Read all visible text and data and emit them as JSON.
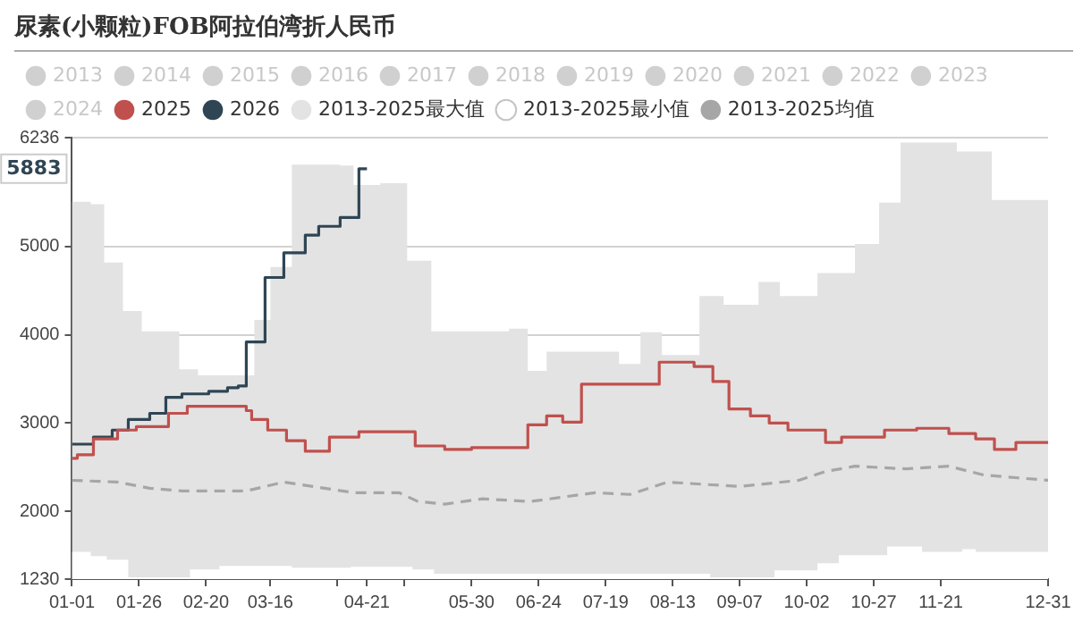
{
  "chart_data": {
    "type": "line",
    "title": "尿素(小颗粒)FOB阿拉伯湾折人民币",
    "xlim": [
      "--01-01",
      "--12-31"
    ],
    "ylim": [
      1230,
      6236
    ],
    "xticks": [
      {
        "value": "--01-01",
        "label": "01-01"
      },
      {
        "value": "--01-26",
        "label": "01-26"
      },
      {
        "value": "--02-20",
        "label": "02-20"
      },
      {
        "value": "--03-16",
        "label": "03-16"
      },
      {
        "value": "--04-10",
        "label": null
      },
      {
        "value": "--04-21",
        "label": "04-21"
      },
      {
        "value": "--05-05",
        "label": null
      },
      {
        "value": "--05-30",
        "label": "05-30"
      },
      {
        "value": "--06-24",
        "label": "06-24"
      },
      {
        "value": "--07-19",
        "label": "07-19"
      },
      {
        "value": "--08-13",
        "label": "08-13"
      },
      {
        "value": "--09-07",
        "label": "09-07"
      },
      {
        "value": "--10-02",
        "label": "10-02"
      },
      {
        "value": "--10-27",
        "label": "10-27"
      },
      {
        "value": "--11-21",
        "label": "11-21"
      },
      {
        "value": "--12-31",
        "label": "12-31"
      }
    ],
    "yticks": [
      1230,
      2000,
      3000,
      4000,
      5000,
      6236
    ],
    "grid": "y",
    "legend": "top left",
    "marker": "none",
    "annotations": [
      {
        "text": "5883",
        "y": 5883
      }
    ],
    "series": [
      {
        "name": "2013",
        "color": "#cccccc"
      },
      {
        "name": "2014",
        "color": "#cccccc"
      },
      {
        "name": "2015",
        "color": "#cccccc"
      },
      {
        "name": "2016",
        "color": "#cccccc"
      },
      {
        "name": "2017",
        "color": "#cccccc"
      },
      {
        "name": "2018",
        "color": "#cccccc"
      },
      {
        "name": "2019",
        "color": "#cccccc"
      },
      {
        "name": "2020",
        "color": "#cccccc"
      },
      {
        "name": "2021",
        "color": "#cccccc"
      },
      {
        "name": "2022",
        "color": "#cccccc"
      },
      {
        "name": "2023",
        "color": "#cccccc"
      },
      {
        "name": "2024",
        "color": "#cccccc"
      },
      {
        "name": "2025",
        "type": "step",
        "color": "#c0504d",
        "x": [
          "--01-01",
          "--01-03",
          "--01-09",
          "--01-18",
          "--01-25",
          "--02-06",
          "--02-13",
          "--03-07",
          "--03-09",
          "--03-15",
          "--03-22",
          "--03-29",
          "--04-07",
          "--04-18",
          "--05-09",
          "--05-20",
          "--05-30",
          "--06-20",
          "--06-27",
          "--07-03",
          "--07-10",
          "--08-08",
          "--08-21",
          "--08-28",
          "--09-03",
          "--09-11",
          "--09-18",
          "--09-25",
          "--10-09",
          "--10-15",
          "--10-31",
          "--11-12",
          "--11-24",
          "--12-04",
          "--12-11",
          "--12-19",
          "--12-31"
        ],
        "values": [
          2600,
          2640,
          2820,
          2920,
          2960,
          3110,
          3190,
          3140,
          3040,
          2920,
          2800,
          2680,
          2840,
          2900,
          2740,
          2700,
          2720,
          2980,
          3080,
          3010,
          3440,
          3690,
          3640,
          3470,
          3160,
          3080,
          3000,
          2920,
          2780,
          2840,
          2920,
          2940,
          2880,
          2820,
          2700,
          2780,
          2780
        ]
      },
      {
        "name": "2026",
        "type": "step",
        "color": "#2f4554",
        "x": [
          "--01-01",
          "--01-09",
          "--01-16",
          "--01-22",
          "--01-30",
          "--02-05",
          "--02-11",
          "--02-21",
          "--02-28",
          "--03-04",
          "--03-07",
          "--03-14",
          "--03-21",
          "--03-29",
          "--04-03",
          "--04-11",
          "--04-18",
          "--04-21"
        ],
        "values": [
          2760,
          2840,
          2920,
          3040,
          3110,
          3290,
          3330,
          3360,
          3400,
          3420,
          3920,
          4650,
          4930,
          5130,
          5230,
          5330,
          5883,
          5883
        ]
      },
      {
        "name": "2013-2025最大值",
        "type": "area",
        "color": "#e3e3e3",
        "x": [
          "--01-01",
          "--01-08",
          "--01-13",
          "--01-20",
          "--01-27",
          "--02-10",
          "--02-17",
          "--03-10",
          "--03-16",
          "--03-24",
          "--04-11",
          "--04-16",
          "--04-26",
          "--05-06",
          "--05-15",
          "--06-13",
          "--06-20",
          "--06-27",
          "--07-24",
          "--08-01",
          "--08-09",
          "--08-23",
          "--09-01",
          "--09-14",
          "--09-22",
          "--10-06",
          "--10-20",
          "--10-29",
          "--11-06",
          "--11-27",
          "--12-10",
          "--12-31"
        ],
        "values": [
          5510,
          5480,
          4820,
          4270,
          4040,
          3610,
          3540,
          4170,
          4770,
          5930,
          5920,
          5700,
          5720,
          4840,
          4040,
          4070,
          3590,
          3810,
          3670,
          4030,
          3770,
          4440,
          4340,
          4600,
          4440,
          4700,
          5030,
          5500,
          6180,
          6080,
          5530,
          5530
        ]
      },
      {
        "name": "2013-2025最小值",
        "type": "area",
        "color": "#ffffff",
        "x": [
          "--01-01",
          "--01-08",
          "--01-14",
          "--01-22",
          "--02-14",
          "--02-25",
          "--03-24",
          "--04-15",
          "--05-08",
          "--05-16",
          "--08-27",
          "--09-20",
          "--10-06",
          "--10-14",
          "--11-01",
          "--11-14",
          "--11-29",
          "--12-04",
          "--12-31"
        ],
        "values": [
          1540,
          1490,
          1450,
          1250,
          1340,
          1380,
          1360,
          1370,
          1340,
          1290,
          1250,
          1330,
          1410,
          1500,
          1600,
          1540,
          1570,
          1540,
          1540
        ]
      },
      {
        "name": "2013-2025均值",
        "type": "line",
        "line_style": "dashed",
        "color": "#a6a6a6",
        "x": [
          "--01-01",
          "--01-18",
          "--01-30",
          "--02-11",
          "--03-07",
          "--03-21",
          "--04-16",
          "--05-03",
          "--05-10",
          "--05-20",
          "--06-03",
          "--06-21",
          "--07-15",
          "--07-28",
          "--08-11",
          "--09-07",
          "--09-29",
          "--10-09",
          "--10-20",
          "--11-08",
          "--11-24",
          "--12-07",
          "--12-19",
          "--12-31"
        ],
        "values": [
          2350,
          2330,
          2260,
          2230,
          2230,
          2330,
          2210,
          2210,
          2110,
          2080,
          2140,
          2110,
          2210,
          2190,
          2330,
          2280,
          2350,
          2450,
          2510,
          2480,
          2510,
          2410,
          2380,
          2350
        ]
      }
    ]
  }
}
